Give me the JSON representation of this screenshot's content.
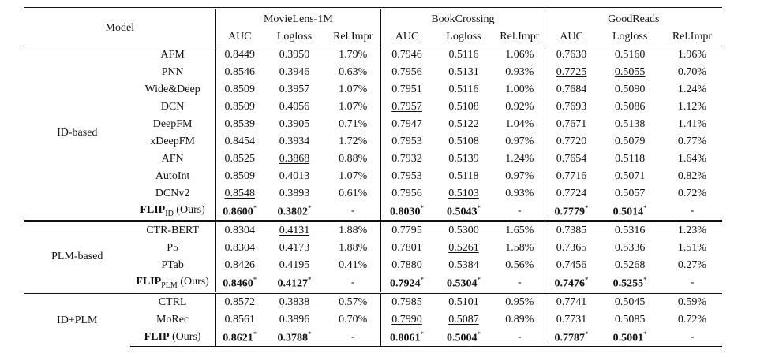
{
  "header": {
    "model_label": "Model",
    "datasets": [
      "MovieLens-1M",
      "BookCrossing",
      "GoodReads"
    ],
    "metrics": [
      "AUC",
      "Logloss",
      "Rel.Impr"
    ]
  },
  "groups": [
    {
      "name": "ID-based",
      "rows": [
        {
          "model": "AFM",
          "cells": [
            "0.8449",
            "0.3950",
            "1.79%",
            "0.7946",
            "0.5116",
            "1.06%",
            "0.7630",
            "0.5160",
            "1.96%"
          ]
        },
        {
          "model": "PNN",
          "cells": [
            "0.8546",
            "0.3946",
            "0.63%",
            "0.7956",
            "0.5131",
            "0.93%",
            "0.7725",
            "0.5055",
            "0.70%"
          ]
        },
        {
          "model": "Wide&Deep",
          "cells": [
            "0.8509",
            "0.3957",
            "1.07%",
            "0.7951",
            "0.5116",
            "1.00%",
            "0.7684",
            "0.5090",
            "1.24%"
          ]
        },
        {
          "model": "DCN",
          "cells": [
            "0.8509",
            "0.4056",
            "1.07%",
            "0.7957",
            "0.5108",
            "0.92%",
            "0.7693",
            "0.5086",
            "1.12%"
          ]
        },
        {
          "model": "DeepFM",
          "cells": [
            "0.8539",
            "0.3905",
            "0.71%",
            "0.7947",
            "0.5122",
            "1.04%",
            "0.7671",
            "0.5138",
            "1.41%"
          ]
        },
        {
          "model": "xDeepFM",
          "cells": [
            "0.8454",
            "0.3934",
            "1.72%",
            "0.7953",
            "0.5108",
            "0.97%",
            "0.7720",
            "0.5079",
            "0.77%"
          ]
        },
        {
          "model": "AFN",
          "cells": [
            "0.8525",
            "0.3868",
            "0.88%",
            "0.7932",
            "0.5139",
            "1.24%",
            "0.7654",
            "0.5118",
            "1.64%"
          ]
        },
        {
          "model": "AutoInt",
          "cells": [
            "0.8509",
            "0.4013",
            "1.07%",
            "0.7953",
            "0.5118",
            "0.97%",
            "0.7716",
            "0.5071",
            "0.82%"
          ]
        },
        {
          "model": "DCNv2",
          "cells": [
            "0.8548",
            "0.3893",
            "0.61%",
            "0.7956",
            "0.5103",
            "0.93%",
            "0.7724",
            "0.5057",
            "0.72%"
          ]
        }
      ],
      "ours": {
        "name": "FLIP",
        "subscript": "ID",
        "suffix": " (Ours)",
        "cells": [
          "0.8600",
          "0.3802",
          "-",
          "0.8030",
          "0.5043",
          "-",
          "0.7779",
          "0.5014",
          "-"
        ]
      }
    },
    {
      "name": "PLM-based",
      "rows": [
        {
          "model": "CTR-BERT",
          "cells": [
            "0.8304",
            "0.4131",
            "1.88%",
            "0.7795",
            "0.5300",
            "1.65%",
            "0.7385",
            "0.5316",
            "1.23%"
          ]
        },
        {
          "model": "P5",
          "cells": [
            "0.8304",
            "0.4173",
            "1.88%",
            "0.7801",
            "0.5261",
            "1.58%",
            "0.7365",
            "0.5336",
            "1.51%"
          ]
        },
        {
          "model": "PTab",
          "cells": [
            "0.8426",
            "0.4195",
            "0.41%",
            "0.7880",
            "0.5384",
            "0.56%",
            "0.7456",
            "0.5268",
            "0.27%"
          ]
        }
      ],
      "ours": {
        "name": "FLIP",
        "subscript": "PLM",
        "suffix": " (Ours)",
        "cells": [
          "0.8460",
          "0.4127",
          "-",
          "0.7924",
          "0.5304",
          "-",
          "0.7476",
          "0.5255",
          "-"
        ]
      }
    },
    {
      "name": "ID+PLM",
      "rows": [
        {
          "model": "CTRL",
          "cells": [
            "0.8572",
            "0.3838",
            "0.57%",
            "0.7985",
            "0.5101",
            "0.95%",
            "0.7741",
            "0.5045",
            "0.59%"
          ]
        },
        {
          "model": "MoRec",
          "cells": [
            "0.8561",
            "0.3896",
            "0.70%",
            "0.7990",
            "0.5087",
            "0.89%",
            "0.7731",
            "0.5085",
            "0.72%"
          ]
        }
      ],
      "ours": {
        "name": "FLIP",
        "subscript": "",
        "suffix": " (Ours)",
        "cells": [
          "0.8621",
          "0.3788",
          "-",
          "0.8061",
          "0.5004",
          "-",
          "0.7787",
          "0.5001",
          "-"
        ]
      }
    }
  ],
  "significance_mark": "*"
}
